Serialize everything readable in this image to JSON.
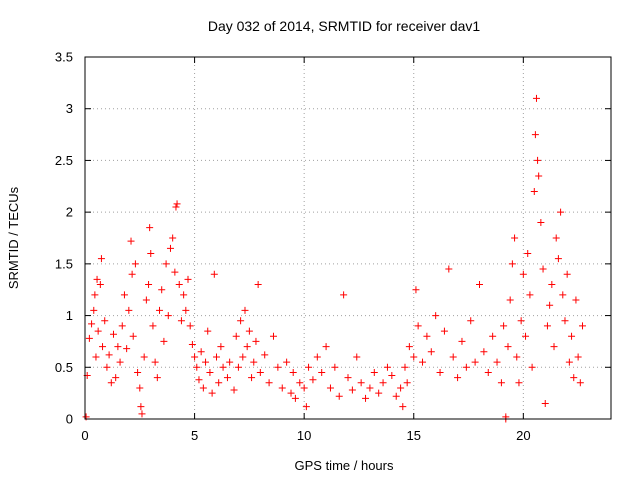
{
  "chart_data": {
    "type": "scatter",
    "title": "Day 032 of 2014, SRMTID for receiver dav1",
    "xlabel": "GPS time / hours",
    "ylabel": "SRMTID / TECUs",
    "xlim": [
      0,
      24
    ],
    "ylim": [
      0,
      3.5
    ],
    "xticks": [
      0,
      5,
      10,
      15,
      20
    ],
    "xtick_labels": [
      "0",
      "5",
      "10",
      "15",
      "20"
    ],
    "yticks": [
      0,
      0.5,
      1,
      1.5,
      2,
      2.5,
      3,
      3.5
    ],
    "ytick_labels": [
      "0",
      "0.5",
      "1",
      "1.5",
      "2",
      "2.5",
      "3",
      "3.5"
    ],
    "grid": true,
    "marker": "+",
    "color": "#ff0000",
    "series": [
      {
        "name": "SRMTID",
        "points": [
          [
            0.1,
            0.42
          ],
          [
            0.2,
            0.78
          ],
          [
            0.3,
            0.92
          ],
          [
            0.4,
            1.05
          ],
          [
            0.45,
            1.2
          ],
          [
            0.5,
            0.6
          ],
          [
            0.55,
            1.35
          ],
          [
            0.6,
            0.85
          ],
          [
            0.7,
            1.3
          ],
          [
            0.75,
            1.55
          ],
          [
            0.8,
            0.7
          ],
          [
            0.9,
            0.95
          ],
          [
            1.0,
            0.5
          ],
          [
            1.1,
            0.62
          ],
          [
            1.2,
            0.35
          ],
          [
            1.3,
            0.82
          ],
          [
            1.4,
            0.4
          ],
          [
            1.5,
            0.7
          ],
          [
            1.6,
            0.55
          ],
          [
            1.7,
            0.9
          ],
          [
            1.8,
            1.2
          ],
          [
            1.9,
            0.68
          ],
          [
            2.0,
            1.05
          ],
          [
            2.1,
            1.72
          ],
          [
            2.15,
            1.4
          ],
          [
            2.2,
            0.8
          ],
          [
            2.3,
            1.5
          ],
          [
            2.4,
            0.45
          ],
          [
            2.5,
            0.3
          ],
          [
            2.55,
            0.12
          ],
          [
            2.6,
            0.05
          ],
          [
            2.7,
            0.6
          ],
          [
            2.8,
            1.15
          ],
          [
            2.9,
            1.3
          ],
          [
            2.95,
            1.85
          ],
          [
            3.0,
            1.6
          ],
          [
            3.1,
            0.9
          ],
          [
            3.2,
            0.55
          ],
          [
            3.3,
            0.4
          ],
          [
            3.4,
            1.05
          ],
          [
            3.5,
            1.25
          ],
          [
            3.6,
            0.75
          ],
          [
            3.7,
            1.5
          ],
          [
            3.8,
            1.0
          ],
          [
            3.9,
            1.65
          ],
          [
            4.0,
            1.75
          ],
          [
            4.1,
            1.42
          ],
          [
            4.15,
            2.05
          ],
          [
            4.2,
            2.08
          ],
          [
            4.3,
            1.3
          ],
          [
            4.4,
            0.95
          ],
          [
            4.5,
            1.2
          ],
          [
            4.6,
            1.05
          ],
          [
            4.7,
            1.35
          ],
          [
            4.8,
            0.9
          ],
          [
            4.9,
            0.72
          ],
          [
            5.0,
            0.6
          ],
          [
            5.1,
            0.5
          ],
          [
            5.2,
            0.38
          ],
          [
            5.3,
            0.65
          ],
          [
            5.4,
            0.3
          ],
          [
            5.5,
            0.55
          ],
          [
            5.6,
            0.85
          ],
          [
            5.7,
            0.45
          ],
          [
            5.8,
            0.25
          ],
          [
            5.9,
            1.4
          ],
          [
            6.0,
            0.6
          ],
          [
            6.1,
            0.35
          ],
          [
            6.2,
            0.7
          ],
          [
            6.3,
            0.5
          ],
          [
            6.5,
            0.4
          ],
          [
            6.6,
            0.55
          ],
          [
            6.8,
            0.28
          ],
          [
            6.9,
            0.8
          ],
          [
            7.0,
            0.5
          ],
          [
            7.1,
            0.95
          ],
          [
            7.2,
            0.6
          ],
          [
            7.3,
            1.05
          ],
          [
            7.4,
            0.7
          ],
          [
            7.5,
            0.85
          ],
          [
            7.6,
            0.4
          ],
          [
            7.7,
            0.55
          ],
          [
            7.8,
            0.75
          ],
          [
            7.9,
            1.3
          ],
          [
            8.0,
            0.45
          ],
          [
            8.2,
            0.62
          ],
          [
            8.4,
            0.35
          ],
          [
            8.6,
            0.8
          ],
          [
            8.8,
            0.5
          ],
          [
            9.0,
            0.3
          ],
          [
            9.2,
            0.55
          ],
          [
            9.4,
            0.25
          ],
          [
            9.5,
            0.45
          ],
          [
            9.6,
            0.2
          ],
          [
            9.8,
            0.35
          ],
          [
            10.0,
            0.3
          ],
          [
            10.1,
            0.12
          ],
          [
            10.2,
            0.5
          ],
          [
            10.4,
            0.38
          ],
          [
            10.6,
            0.6
          ],
          [
            10.8,
            0.45
          ],
          [
            11.0,
            0.7
          ],
          [
            11.2,
            0.3
          ],
          [
            11.4,
            0.5
          ],
          [
            11.6,
            0.22
          ],
          [
            11.8,
            1.2
          ],
          [
            12.0,
            0.4
          ],
          [
            12.2,
            0.28
          ],
          [
            12.4,
            0.6
          ],
          [
            12.6,
            0.35
          ],
          [
            12.8,
            0.2
          ],
          [
            13.0,
            0.3
          ],
          [
            13.2,
            0.45
          ],
          [
            13.4,
            0.25
          ],
          [
            13.6,
            0.35
          ],
          [
            13.8,
            0.5
          ],
          [
            14.0,
            0.42
          ],
          [
            14.2,
            0.22
          ],
          [
            14.4,
            0.3
          ],
          [
            14.5,
            0.12
          ],
          [
            14.6,
            0.5
          ],
          [
            14.7,
            0.35
          ],
          [
            14.8,
            0.7
          ],
          [
            15.0,
            0.6
          ],
          [
            15.1,
            1.25
          ],
          [
            15.2,
            0.9
          ],
          [
            15.4,
            0.55
          ],
          [
            15.6,
            0.8
          ],
          [
            15.8,
            0.65
          ],
          [
            16.0,
            1.0
          ],
          [
            16.2,
            0.45
          ],
          [
            16.4,
            0.85
          ],
          [
            16.6,
            1.45
          ],
          [
            16.8,
            0.6
          ],
          [
            17.0,
            0.4
          ],
          [
            17.2,
            0.75
          ],
          [
            17.4,
            0.5
          ],
          [
            17.6,
            0.95
          ],
          [
            17.8,
            0.55
          ],
          [
            18.0,
            1.3
          ],
          [
            18.2,
            0.65
          ],
          [
            18.4,
            0.45
          ],
          [
            18.6,
            0.8
          ],
          [
            18.8,
            0.55
          ],
          [
            19.0,
            0.35
          ],
          [
            19.1,
            0.9
          ],
          [
            19.2,
            0.02
          ],
          [
            19.3,
            0.7
          ],
          [
            19.4,
            1.15
          ],
          [
            19.5,
            1.5
          ],
          [
            19.6,
            1.75
          ],
          [
            19.7,
            0.6
          ],
          [
            19.8,
            0.35
          ],
          [
            19.9,
            0.95
          ],
          [
            20.0,
            1.4
          ],
          [
            20.1,
            0.8
          ],
          [
            20.2,
            1.6
          ],
          [
            20.3,
            1.2
          ],
          [
            20.4,
            0.5
          ],
          [
            20.5,
            2.2
          ],
          [
            20.55,
            2.75
          ],
          [
            20.6,
            3.1
          ],
          [
            20.65,
            2.5
          ],
          [
            20.7,
            2.35
          ],
          [
            20.8,
            1.9
          ],
          [
            20.9,
            1.45
          ],
          [
            21.0,
            0.15
          ],
          [
            21.1,
            0.9
          ],
          [
            21.2,
            1.1
          ],
          [
            21.3,
            1.3
          ],
          [
            21.4,
            0.7
          ],
          [
            21.5,
            1.75
          ],
          [
            21.6,
            1.55
          ],
          [
            21.7,
            2.0
          ],
          [
            21.8,
            1.2
          ],
          [
            21.9,
            0.95
          ],
          [
            22.0,
            1.4
          ],
          [
            22.1,
            0.55
          ],
          [
            22.2,
            0.8
          ],
          [
            22.3,
            0.4
          ],
          [
            22.4,
            1.15
          ],
          [
            22.5,
            0.6
          ],
          [
            22.6,
            0.35
          ],
          [
            22.7,
            0.9
          ],
          [
            0.05,
            0.02
          ],
          [
            19.2,
            0.0
          ]
        ]
      }
    ]
  }
}
